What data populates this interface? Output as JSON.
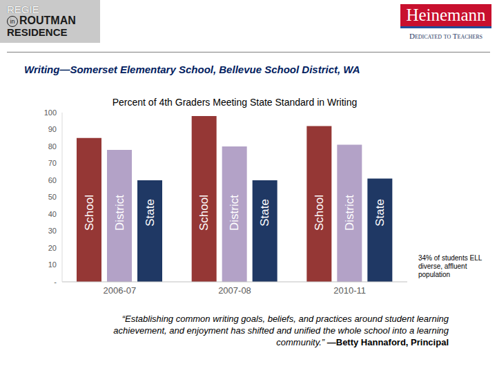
{
  "header": {
    "logo_left": [
      "REGIE",
      "in",
      "ROUTMAN",
      "RESIDENCE"
    ],
    "logo_right": "Heinemann",
    "logo_right_tagline": "Dedicated to Teachers"
  },
  "slide_title": "Writing—Somerset Elementary School, Bellevue School District, WA",
  "quote": "“Establishing common writing goals, beliefs, and practices around student learning achievement, and enjoyment has shifted and unified the whole school into a learning community.”",
  "quote_author": "—Betty Hannaford, Principal",
  "chart_data": {
    "type": "bar",
    "title": "Percent of 4th Graders Meeting State Standard in Writing",
    "categories": [
      "2006-07",
      "2007-08",
      "2010-11"
    ],
    "series": [
      {
        "name": "School",
        "color": "#953735",
        "values": [
          85,
          98,
          92
        ]
      },
      {
        "name": "District",
        "color": "#b3a2c7",
        "values": [
          78,
          80,
          81
        ]
      },
      {
        "name": "State",
        "color": "#1f3864",
        "values": [
          60,
          60,
          61
        ]
      }
    ],
    "ylim": [
      0,
      100
    ],
    "yticks": [
      {
        "value": 0,
        "label": "-"
      },
      10,
      20,
      30,
      40,
      50,
      60,
      70,
      80,
      90,
      100
    ],
    "grid": false,
    "annotation": "34% of students ELL diverse, affluent population"
  }
}
